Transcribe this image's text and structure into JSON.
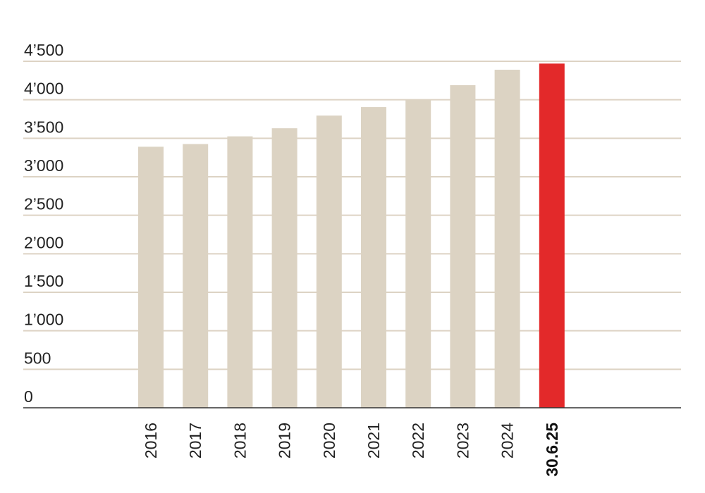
{
  "chart_data": {
    "type": "bar",
    "title": "",
    "xlabel": "",
    "ylabel": "",
    "categories": [
      "2016",
      "2017",
      "2018",
      "2019",
      "2020",
      "2021",
      "2022",
      "2023",
      "2024",
      "30.6.25"
    ],
    "values": [
      3390,
      3425,
      3525,
      3630,
      3795,
      3905,
      4005,
      4190,
      4390,
      4470
    ],
    "ylim": [
      0,
      4500
    ],
    "yticks": [
      0,
      500,
      1000,
      1500,
      2000,
      2500,
      3000,
      3500,
      4000,
      4500
    ],
    "ytick_labels": [
      "0",
      "500",
      "1’000",
      "1’500",
      "2’000",
      "2’500",
      "3’000",
      "3’500",
      "4’000",
      "4’500"
    ],
    "grid": true,
    "highlight_index": 9,
    "colors": {
      "bar": "#dcd3c3",
      "highlight": "#e3292a",
      "grid": "#ddd3c4",
      "axis": "#333333"
    }
  }
}
